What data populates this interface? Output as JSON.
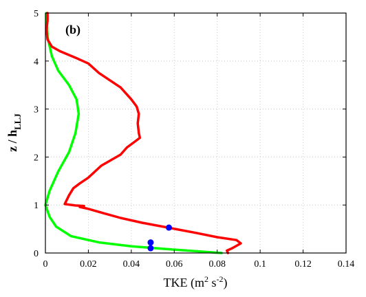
{
  "chart_data": {
    "type": "line",
    "panel_label": "(b)",
    "xlabel": "TKE (m² s⁻²)",
    "xlabel_parts": {
      "base": "TKE (m",
      "exp1": "2",
      "mid": " s",
      "exp2": "-2",
      "end": ")"
    },
    "ylabel_parts": {
      "base": "z / h",
      "sub": "LLJ"
    },
    "xlim": [
      0,
      0.14
    ],
    "ylim": [
      0,
      5
    ],
    "x_ticks": [
      "0",
      "0.02",
      "0.04",
      "0.06",
      "0.08",
      "0.1",
      "0.12",
      "0.14"
    ],
    "y_ticks": [
      "0",
      "1",
      "2",
      "3",
      "4",
      "5"
    ],
    "grid": true,
    "series": [
      {
        "color": "#00ff00",
        "points": [
          [
            0.082,
            0.0
          ],
          [
            0.06,
            0.07
          ],
          [
            0.04,
            0.14
          ],
          [
            0.025,
            0.22
          ],
          [
            0.012,
            0.35
          ],
          [
            0.005,
            0.55
          ],
          [
            0.002,
            0.75
          ],
          [
            0.0,
            1.0
          ],
          [
            0.002,
            1.3
          ],
          [
            0.006,
            1.7
          ],
          [
            0.011,
            2.1
          ],
          [
            0.014,
            2.5
          ],
          [
            0.0155,
            2.9
          ],
          [
            0.0145,
            3.2
          ],
          [
            0.011,
            3.5
          ],
          [
            0.006,
            3.8
          ],
          [
            0.003,
            4.1
          ],
          [
            0.001,
            4.5
          ],
          [
            0.0005,
            5.0
          ]
        ]
      },
      {
        "color": "#ff0000",
        "points": [
          [
            0.085,
            0.0
          ],
          [
            0.0845,
            0.05
          ],
          [
            0.087,
            0.1
          ],
          [
            0.091,
            0.2
          ],
          [
            0.089,
            0.27
          ],
          [
            0.08,
            0.33
          ],
          [
            0.07,
            0.42
          ],
          [
            0.057,
            0.53
          ],
          [
            0.045,
            0.63
          ],
          [
            0.035,
            0.73
          ],
          [
            0.027,
            0.83
          ],
          [
            0.02,
            0.92
          ],
          [
            0.016,
            0.96
          ],
          [
            0.018,
            0.98
          ],
          [
            0.014,
            0.99
          ],
          [
            0.009,
            1.02
          ],
          [
            0.011,
            1.2
          ],
          [
            0.013,
            1.35
          ],
          [
            0.016,
            1.45
          ],
          [
            0.02,
            1.57
          ],
          [
            0.026,
            1.82
          ],
          [
            0.035,
            2.05
          ],
          [
            0.038,
            2.2
          ],
          [
            0.041,
            2.3
          ],
          [
            0.044,
            2.4
          ],
          [
            0.0435,
            2.5
          ],
          [
            0.043,
            2.7
          ],
          [
            0.0435,
            2.9
          ],
          [
            0.0425,
            3.05
          ],
          [
            0.04,
            3.2
          ],
          [
            0.035,
            3.45
          ],
          [
            0.025,
            3.75
          ],
          [
            0.02,
            3.95
          ],
          [
            0.015,
            4.05
          ],
          [
            0.007,
            4.2
          ],
          [
            0.003,
            4.3
          ],
          [
            0.001,
            4.45
          ],
          [
            0.0005,
            4.65
          ],
          [
            0.001,
            4.85
          ],
          [
            0.001,
            5.0
          ]
        ]
      }
    ],
    "markers": {
      "color": "#0000ff",
      "points": [
        [
          0.0575,
          0.53
        ],
        [
          0.049,
          0.22
        ],
        [
          0.049,
          0.1
        ]
      ]
    }
  }
}
